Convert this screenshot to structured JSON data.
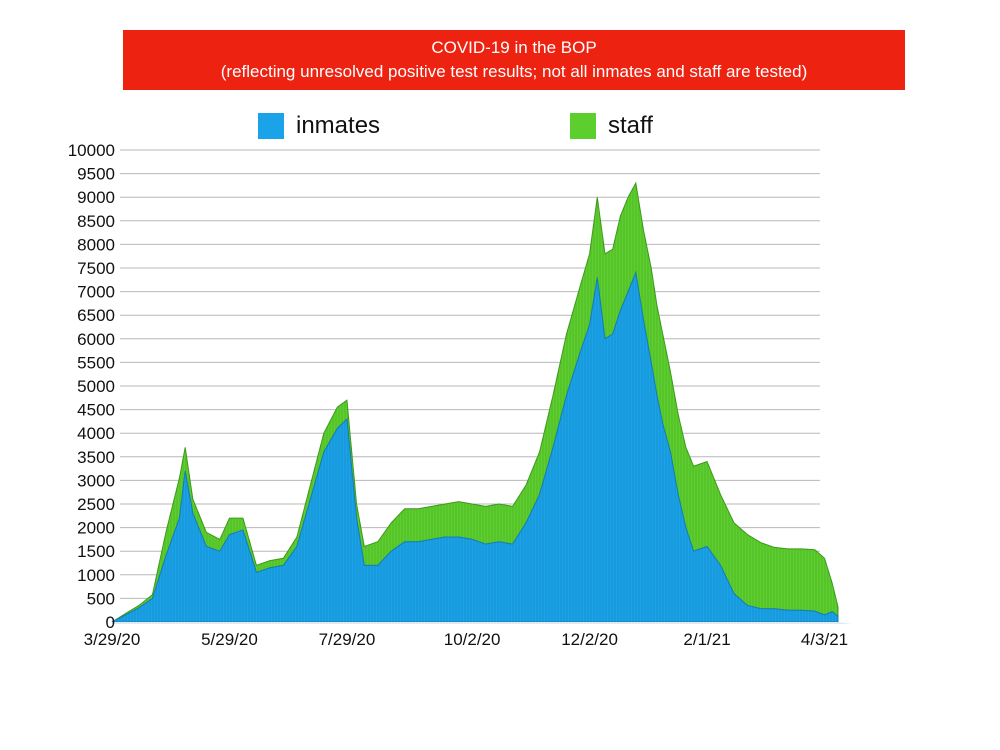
{
  "title": {
    "line1": "COVID-19 in the BOP",
    "line2": "(reflecting unresolved positive test results; not all inmates and staff are tested)"
  },
  "colors": {
    "title_bg": "#ee2211",
    "inmates": "#1aa3e8",
    "staff": "#5ccf2e",
    "grid": "#b8b8b8"
  },
  "legend": [
    {
      "label": "inmates",
      "color": "#1aa3e8"
    },
    {
      "label": "staff",
      "color": "#5ccf2e"
    }
  ],
  "chart_data": {
    "type": "area",
    "stacked": true,
    "title": "COVID-19 in the BOP",
    "subtitle": "(reflecting unresolved positive test results; not all inmates and staff are tested)",
    "ylim": [
      0,
      10000
    ],
    "yticks": [
      0,
      500,
      1000,
      1500,
      2000,
      2500,
      3000,
      3500,
      4000,
      4500,
      5000,
      5500,
      6000,
      6500,
      7000,
      7500,
      8000,
      8500,
      9000,
      9500,
      10000
    ],
    "ytick_labels": [
      "0",
      "500",
      "1000",
      "1500",
      "2000",
      "2500",
      "3000",
      "3500",
      "4000",
      "4500",
      "5000",
      "5500",
      "6000",
      "6500",
      "7000",
      "7500",
      "8000",
      "8500",
      "9000",
      "9500",
      "10000"
    ],
    "xtick_labels": [
      "3/29/20",
      "5/29/20",
      "7/29/20",
      "10/2/20",
      "12/2/20",
      "2/1/21",
      "4/3/21"
    ],
    "xtick_dates": [
      "2020-03-29",
      "2020-05-29",
      "2020-07-29",
      "2020-10-02",
      "2020-12-02",
      "2021-02-01",
      "2021-04-03"
    ],
    "grid": true,
    "legend_position": "top",
    "x": [
      "2020-03-29",
      "2020-04-05",
      "2020-04-12",
      "2020-04-19",
      "2020-04-26",
      "2020-05-03",
      "2020-05-06",
      "2020-05-10",
      "2020-05-17",
      "2020-05-24",
      "2020-05-29",
      "2020-06-05",
      "2020-06-12",
      "2020-06-19",
      "2020-06-26",
      "2020-07-03",
      "2020-07-10",
      "2020-07-17",
      "2020-07-24",
      "2020-07-29",
      "2020-08-03",
      "2020-08-07",
      "2020-08-14",
      "2020-08-21",
      "2020-08-28",
      "2020-09-04",
      "2020-09-11",
      "2020-09-18",
      "2020-09-25",
      "2020-10-02",
      "2020-10-09",
      "2020-10-16",
      "2020-10-23",
      "2020-10-30",
      "2020-11-06",
      "2020-11-13",
      "2020-11-20",
      "2020-11-27",
      "2020-12-02",
      "2020-12-06",
      "2020-12-10",
      "2020-12-14",
      "2020-12-18",
      "2020-12-22",
      "2020-12-26",
      "2020-12-30",
      "2021-01-03",
      "2021-01-06",
      "2021-01-09",
      "2021-01-13",
      "2021-01-17",
      "2021-01-21",
      "2021-01-25",
      "2021-02-01",
      "2021-02-08",
      "2021-02-15",
      "2021-02-22",
      "2021-03-01",
      "2021-03-08",
      "2021-03-15",
      "2021-03-22",
      "2021-03-29",
      "2021-04-03",
      "2021-04-07",
      "2021-04-10"
    ],
    "series": [
      {
        "name": "inmates",
        "values": [
          0,
          150,
          300,
          500,
          1400,
          2200,
          3200,
          2300,
          1600,
          1500,
          1850,
          1950,
          1050,
          1150,
          1200,
          1600,
          2600,
          3600,
          4100,
          4300,
          2200,
          1200,
          1200,
          1500,
          1700,
          1700,
          1750,
          1800,
          1800,
          1750,
          1650,
          1700,
          1650,
          2100,
          2700,
          3700,
          4800,
          5700,
          6300,
          7300,
          6000,
          6100,
          6600,
          7000,
          7400,
          6400,
          5500,
          4800,
          4200,
          3600,
          2700,
          2000,
          1500,
          1600,
          1200,
          600,
          350,
          280,
          280,
          250,
          250,
          230,
          150,
          220,
          120
        ]
      },
      {
        "name": "staff",
        "values": [
          0,
          30,
          50,
          80,
          500,
          850,
          500,
          300,
          300,
          250,
          350,
          250,
          150,
          150,
          150,
          200,
          300,
          400,
          450,
          400,
          300,
          400,
          500,
          600,
          700,
          700,
          700,
          700,
          750,
          750,
          800,
          800,
          800,
          800,
          900,
          1100,
          1300,
          1400,
          1500,
          1700,
          1800,
          1800,
          2000,
          2000,
          1900,
          1900,
          2000,
          1900,
          1900,
          1700,
          1700,
          1700,
          1800,
          1800,
          1500,
          1500,
          1500,
          1400,
          1300,
          1300,
          1300,
          1300,
          1200,
          600,
          200
        ]
      }
    ]
  }
}
